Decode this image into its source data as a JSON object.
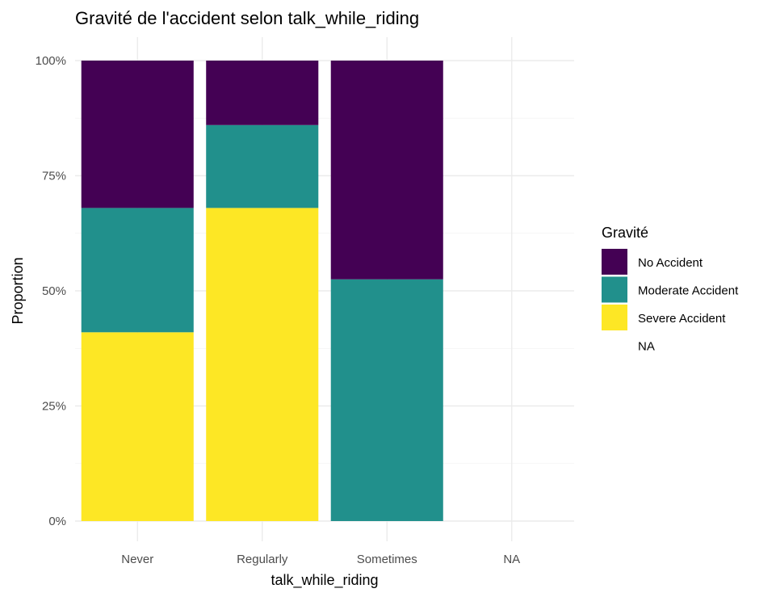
{
  "chart_data": {
    "type": "bar",
    "stacked": true,
    "title": "Gravité de l'accident selon talk_while_riding",
    "xlabel": "talk_while_riding",
    "ylabel": "Proportion",
    "categories": [
      "Never",
      "Regularly",
      "Sometimes",
      "NA"
    ],
    "yticks": [
      "0%",
      "25%",
      "50%",
      "75%",
      "100%"
    ],
    "ylim": [
      0,
      1
    ],
    "grid": true,
    "legend": {
      "title": "Gravité",
      "position": "right"
    },
    "series": [
      {
        "name": "Severe Accident",
        "color": "#FDE725",
        "values": [
          0.41,
          0.68,
          0,
          0
        ]
      },
      {
        "name": "Moderate Accident",
        "color": "#21908C",
        "values": [
          0.27,
          0.18,
          0.525,
          0
        ]
      },
      {
        "name": "No Accident",
        "color": "#440154",
        "values": [
          0.32,
          0.14,
          0.475,
          0
        ]
      }
    ],
    "legend_items": [
      {
        "label": "No Accident",
        "color": "#440154"
      },
      {
        "label": "Moderate Accident",
        "color": "#21908C"
      },
      {
        "label": "Severe Accident",
        "color": "#FDE725"
      },
      {
        "label": "NA",
        "color": "none"
      }
    ]
  }
}
